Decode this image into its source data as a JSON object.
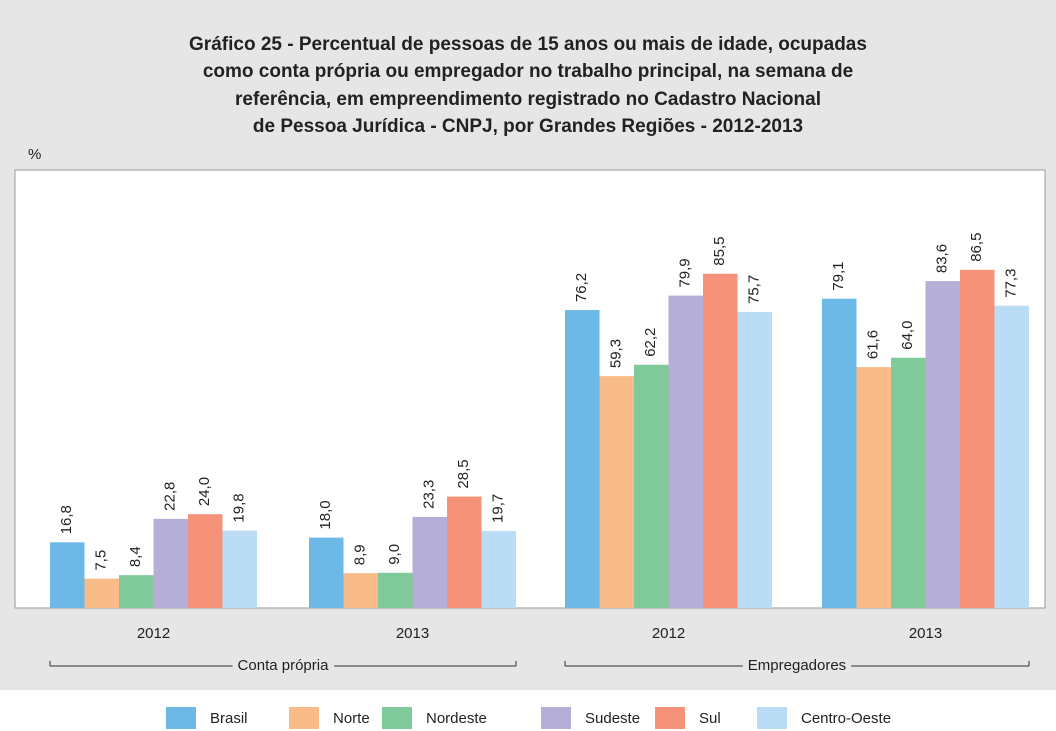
{
  "chart_data": {
    "type": "bar",
    "title": [
      "Gráfico 25 - Percentual de pessoas de 15 anos ou mais de idade, ocupadas",
      "como conta própria ou empregador no trabalho principal, na semana de",
      "referência, em empreendimento registrado no Cadastro Nacional",
      "de Pessoa Jurídica - CNPJ, por Grandes Regiões - 2012-2013"
    ],
    "y_unit": "%",
    "categories": [
      "2012",
      "2013",
      "2012",
      "2013"
    ],
    "groups": [
      "Conta própria",
      "Empregadores"
    ],
    "ylim": [
      0,
      100
    ],
    "series": [
      {
        "name": "Brasil",
        "color": "#6cb9e7",
        "values": [
          16.8,
          18.0,
          76.2,
          79.1
        ],
        "value_labels": [
          "16,8",
          "18,0",
          "76,2",
          "79,1"
        ]
      },
      {
        "name": "Norte",
        "color": "#f9bb88",
        "values": [
          7.5,
          8.9,
          59.3,
          61.6
        ],
        "value_labels": [
          "7,5",
          "8,9",
          "59,3",
          "61,6"
        ]
      },
      {
        "name": "Nordeste",
        "color": "#7fc99b",
        "values": [
          8.4,
          9.0,
          62.2,
          64.0
        ],
        "value_labels": [
          "8,4",
          "9,0",
          "62,2",
          "64,0"
        ]
      },
      {
        "name": "Sudeste",
        "color": "#b5afd7",
        "values": [
          22.8,
          23.3,
          79.9,
          83.6
        ],
        "value_labels": [
          "22,8",
          "23,3",
          "79,9",
          "83,6"
        ]
      },
      {
        "name": "Sul",
        "color": "#f4937a",
        "values": [
          24.0,
          28.5,
          85.5,
          86.5
        ],
        "value_labels": [
          "24,0",
          "28,5",
          "85,5",
          "86,5"
        ]
      },
      {
        "name": "Centro-Oeste",
        "color": "#badcf4",
        "values": [
          19.8,
          19.7,
          75.7,
          77.3
        ],
        "value_labels": [
          "19,8",
          "19,7",
          "75,7",
          "77,3"
        ]
      }
    ]
  }
}
